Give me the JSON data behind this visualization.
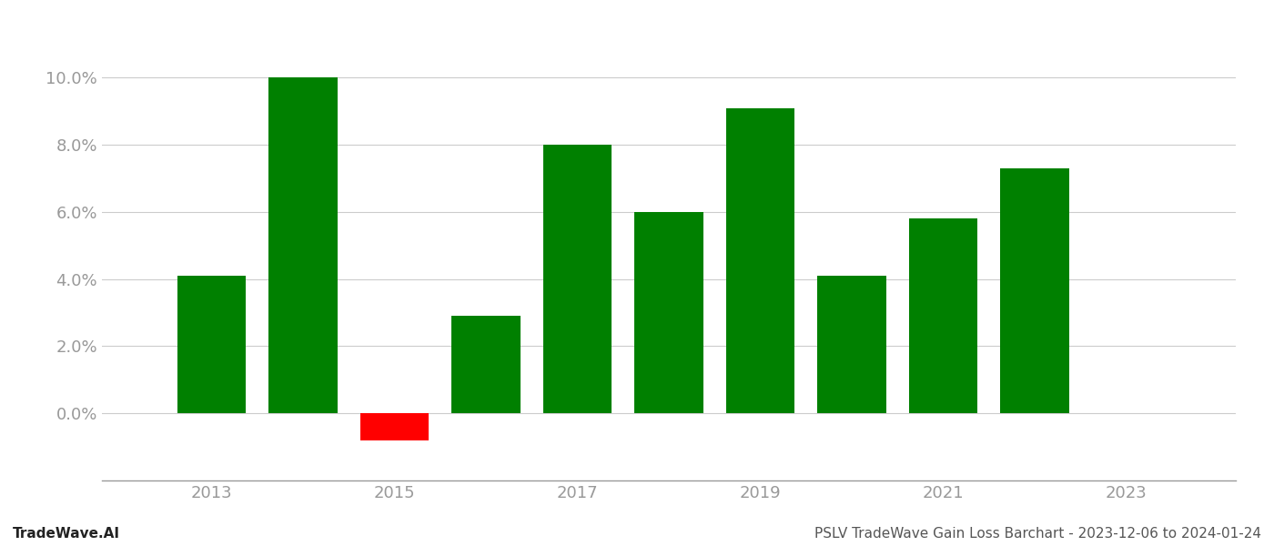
{
  "years": [
    2013,
    2014,
    2015,
    2016,
    2017,
    2018,
    2019,
    2020,
    2021,
    2022
  ],
  "values": [
    0.041,
    0.1,
    -0.008,
    0.029,
    0.08,
    0.06,
    0.091,
    0.041,
    0.058,
    0.073
  ],
  "colors": [
    "#008000",
    "#008000",
    "#ff0000",
    "#008000",
    "#008000",
    "#008000",
    "#008000",
    "#008000",
    "#008000",
    "#008000"
  ],
  "ylim": [
    -0.02,
    0.115
  ],
  "yticks": [
    0.0,
    0.02,
    0.04,
    0.06,
    0.08,
    0.1
  ],
  "xtick_labels": [
    "2013",
    "2015",
    "2017",
    "2019",
    "2021",
    "2023"
  ],
  "xtick_positions": [
    2013,
    2015,
    2017,
    2019,
    2021,
    2023
  ],
  "xlabel": "",
  "ylabel": "",
  "footer_left": "TradeWave.AI",
  "footer_right": "PSLV TradeWave Gain Loss Barchart - 2023-12-06 to 2024-01-24",
  "bar_width": 0.75,
  "background_color": "#ffffff",
  "grid_color": "#cccccc",
  "grid_linewidth": 0.8,
  "tick_color": "#999999",
  "footer_fontsize": 11,
  "axis_fontsize": 13,
  "xlim": [
    2011.8,
    2024.2
  ]
}
